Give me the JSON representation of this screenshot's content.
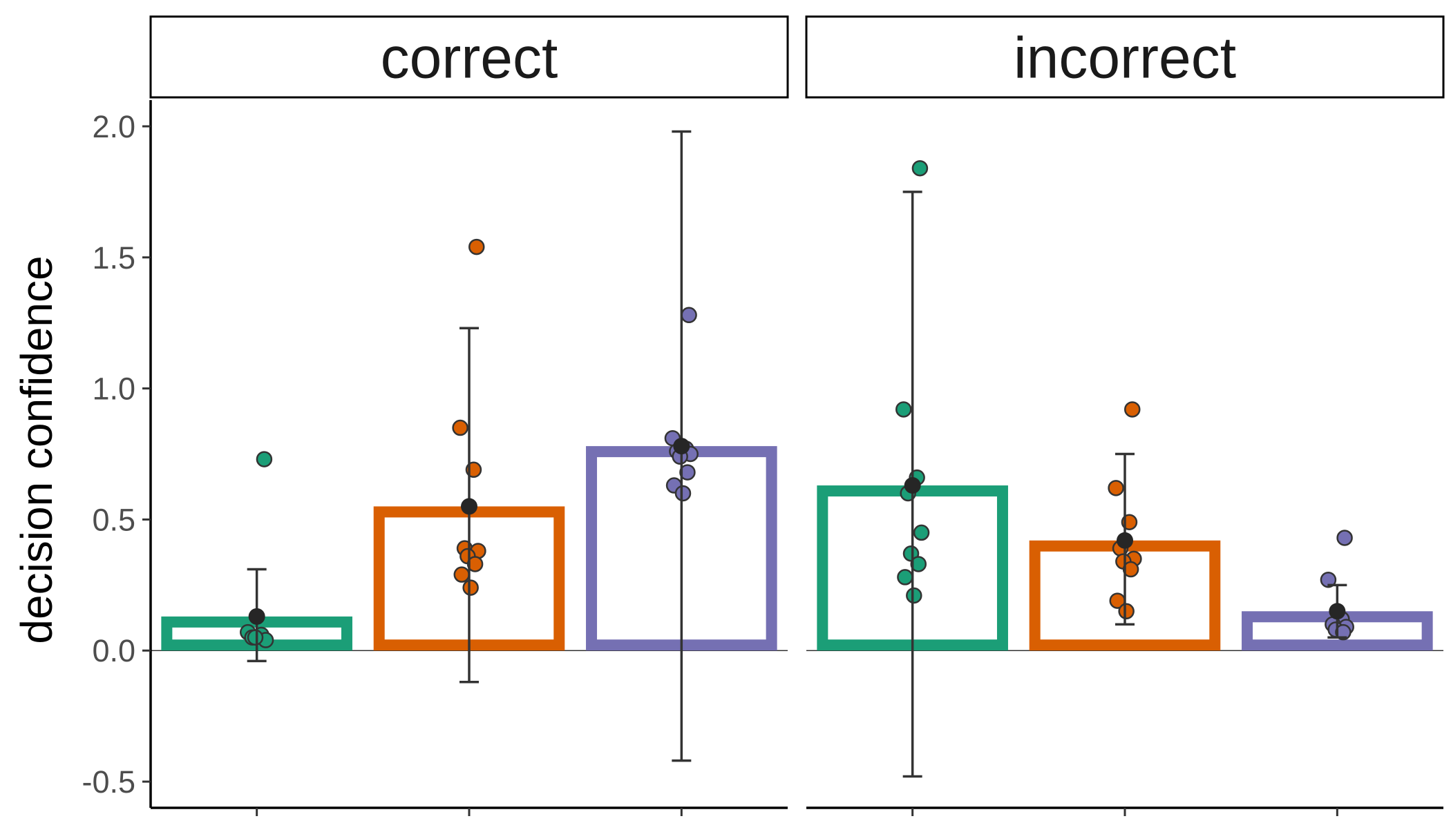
{
  "chart_data": {
    "type": "bar",
    "ylabel": "decision confidence",
    "ylim": [
      -0.6,
      2.1
    ],
    "yticks": [
      -0.5,
      0.0,
      0.5,
      1.0,
      1.5,
      2.0
    ],
    "ytick_labels": [
      "-0.5",
      "0.0",
      "0.5",
      "1.0",
      "1.5",
      "2.0"
    ],
    "grid": false,
    "zero_line": true,
    "categories": [
      "",
      "",
      ""
    ],
    "colors": [
      "#1b9e77",
      "#d95f02",
      "#7570b3"
    ],
    "panels": [
      {
        "name": "correct",
        "bars": [
          {
            "mean": 0.13,
            "ci": [
              -0.04,
              0.31
            ],
            "points": [
              0.73,
              0.07,
              0.06,
              0.05,
              0.04,
              0.05
            ]
          },
          {
            "mean": 0.55,
            "ci": [
              -0.12,
              1.23
            ],
            "points": [
              1.54,
              0.85,
              0.69,
              0.39,
              0.38,
              0.36,
              0.33,
              0.29,
              0.24
            ]
          },
          {
            "mean": 0.78,
            "ci": [
              -0.42,
              1.98
            ],
            "points": [
              1.28,
              0.81,
              0.77,
              0.76,
              0.75,
              0.74,
              0.68,
              0.63,
              0.6
            ]
          }
        ]
      },
      {
        "name": "incorrect",
        "bars": [
          {
            "mean": 0.63,
            "ci": [
              -0.48,
              1.75
            ],
            "points": [
              1.84,
              0.92,
              0.66,
              0.6,
              0.45,
              0.37,
              0.33,
              0.28,
              0.21
            ]
          },
          {
            "mean": 0.42,
            "ci": [
              0.1,
              0.75
            ],
            "points": [
              0.92,
              0.62,
              0.49,
              0.39,
              0.35,
              0.34,
              0.31,
              0.19,
              0.15
            ]
          },
          {
            "mean": 0.15,
            "ci": [
              0.05,
              0.25
            ],
            "points": [
              0.43,
              0.27,
              0.12,
              0.1,
              0.09,
              0.08,
              0.07
            ]
          }
        ]
      }
    ]
  }
}
